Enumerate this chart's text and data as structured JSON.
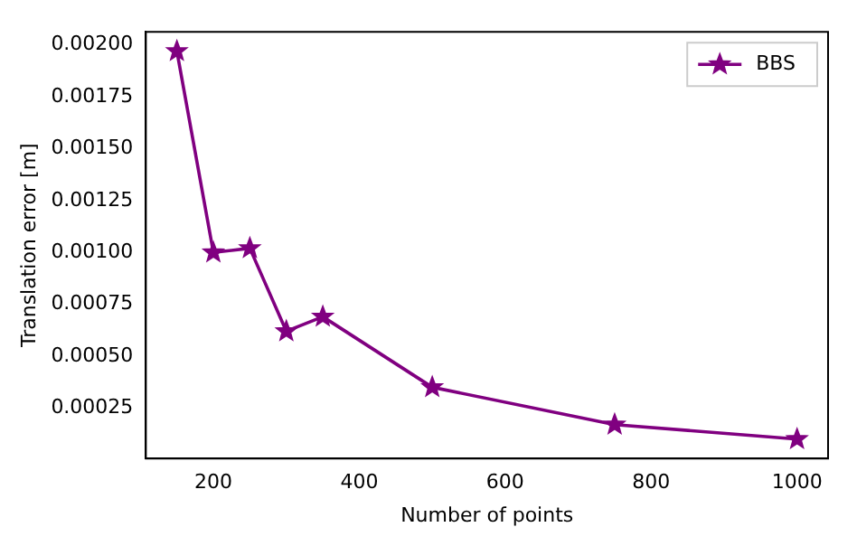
{
  "chart_data": {
    "type": "line",
    "xlabel": "Number of points",
    "ylabel": "Translation error [m]",
    "x": [
      150,
      200,
      250,
      300,
      350,
      500,
      750,
      1000
    ],
    "series": [
      {
        "name": "BBS",
        "color": "#800080",
        "values": [
          0.00197,
          0.001,
          0.00102,
          0.00062,
          0.00069,
          0.00035,
          0.00017,
          0.0001
        ]
      }
    ],
    "xlim": [
      107.5,
      1042.5
    ],
    "ylim": [
      6.5e-06,
      0.0020635
    ],
    "xticks": [
      200,
      400,
      600,
      800,
      1000
    ],
    "yticks": [
      {
        "value": 0.00025,
        "label": "0.00025"
      },
      {
        "value": 0.0005,
        "label": "0.00050"
      },
      {
        "value": 0.00075,
        "label": "0.00075"
      },
      {
        "value": 0.001,
        "label": "0.00100"
      },
      {
        "value": 0.00125,
        "label": "0.00125"
      },
      {
        "value": 0.0015,
        "label": "0.00150"
      },
      {
        "value": 0.00175,
        "label": "0.00175"
      },
      {
        "value": 0.002,
        "label": "0.00200"
      }
    ],
    "legend": "top right",
    "marker": "star",
    "line_style": "solid",
    "grid": false
  }
}
